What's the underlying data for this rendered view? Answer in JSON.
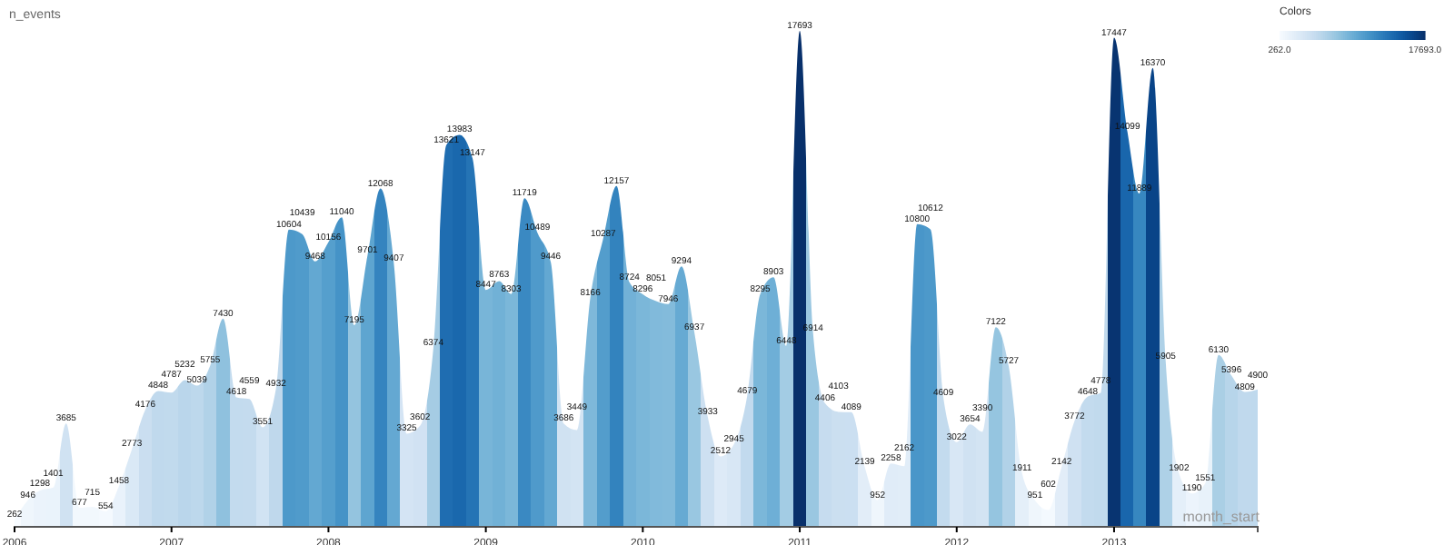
{
  "chart_data": {
    "type": "area",
    "xlabel": "month_start",
    "ylabel": "n_events",
    "clabel": "Colors",
    "clim": [
      262,
      17693
    ],
    "cticks": [
      {
        "value": 262,
        "label": "262.0"
      },
      {
        "value": 17693,
        "label": "17693.0"
      }
    ],
    "x": [
      "2006-01",
      "2006-02",
      "2006-03",
      "2006-04",
      "2006-05",
      "2006-06",
      "2006-07",
      "2006-08",
      "2006-09",
      "2006-10",
      "2006-11",
      "2006-12",
      "2007-01",
      "2007-02",
      "2007-03",
      "2007-04",
      "2007-05",
      "2007-06",
      "2007-07",
      "2007-08",
      "2007-09",
      "2007-10",
      "2007-11",
      "2007-12",
      "2008-01",
      "2008-02",
      "2008-03",
      "2008-04",
      "2008-05",
      "2008-06",
      "2008-07",
      "2008-08",
      "2008-09",
      "2008-10",
      "2008-11",
      "2008-12",
      "2009-01",
      "2009-02",
      "2009-03",
      "2009-04",
      "2009-05",
      "2009-06",
      "2009-07",
      "2009-08",
      "2009-09",
      "2009-10",
      "2009-11",
      "2009-12",
      "2010-01",
      "2010-02",
      "2010-03",
      "2010-04",
      "2010-05",
      "2010-06",
      "2010-07",
      "2010-08",
      "2010-09",
      "2010-10",
      "2010-11",
      "2010-12",
      "2011-01",
      "2011-02",
      "2011-03",
      "2011-04",
      "2011-05",
      "2011-06",
      "2011-07",
      "2011-08",
      "2011-09",
      "2011-10",
      "2011-11",
      "2011-12",
      "2012-01",
      "2012-02",
      "2012-03",
      "2012-04",
      "2012-05",
      "2012-06",
      "2012-07",
      "2012-08",
      "2012-09",
      "2012-10",
      "2012-11",
      "2012-12",
      "2013-01",
      "2013-02",
      "2013-03",
      "2013-04",
      "2013-05",
      "2013-06",
      "2013-07",
      "2013-08",
      "2013-09",
      "2013-10",
      "2013-11",
      "2013-12"
    ],
    "values": [
      262,
      946,
      1298,
      1401,
      3685,
      677,
      715,
      554,
      1458,
      2773,
      4176,
      4848,
      4787,
      5232,
      5039,
      5755,
      7430,
      4618,
      4559,
      3551,
      4932,
      10604,
      10439,
      9468,
      10156,
      11040,
      7195,
      9701,
      12068,
      9407,
      3325,
      3602,
      6374,
      13621,
      13983,
      13147,
      8447,
      8763,
      8303,
      11719,
      10489,
      9446,
      3686,
      3449,
      8166,
      10287,
      12157,
      8724,
      8296,
      8051,
      7946,
      9294,
      6937,
      3933,
      2512,
      2945,
      4679,
      8295,
      8903,
      6448,
      17693,
      6914,
      4406,
      4103,
      4089,
      2139,
      952,
      2258,
      2162,
      10800,
      10612,
      4609,
      3022,
      3654,
      3390,
      7122,
      5727,
      1911,
      951,
      602,
      2142,
      3772,
      4648,
      4778,
      17447,
      14099,
      11889,
      16370,
      5905,
      1902,
      1190,
      1551,
      6130,
      5396,
      4809,
      4900
    ],
    "xlim": [
      "2006-01",
      "2013-12"
    ],
    "xticks": [
      "2006",
      "2007",
      "2008",
      "2009",
      "2010",
      "2011",
      "2012",
      "2013"
    ],
    "data_labels": true,
    "grid": false
  }
}
